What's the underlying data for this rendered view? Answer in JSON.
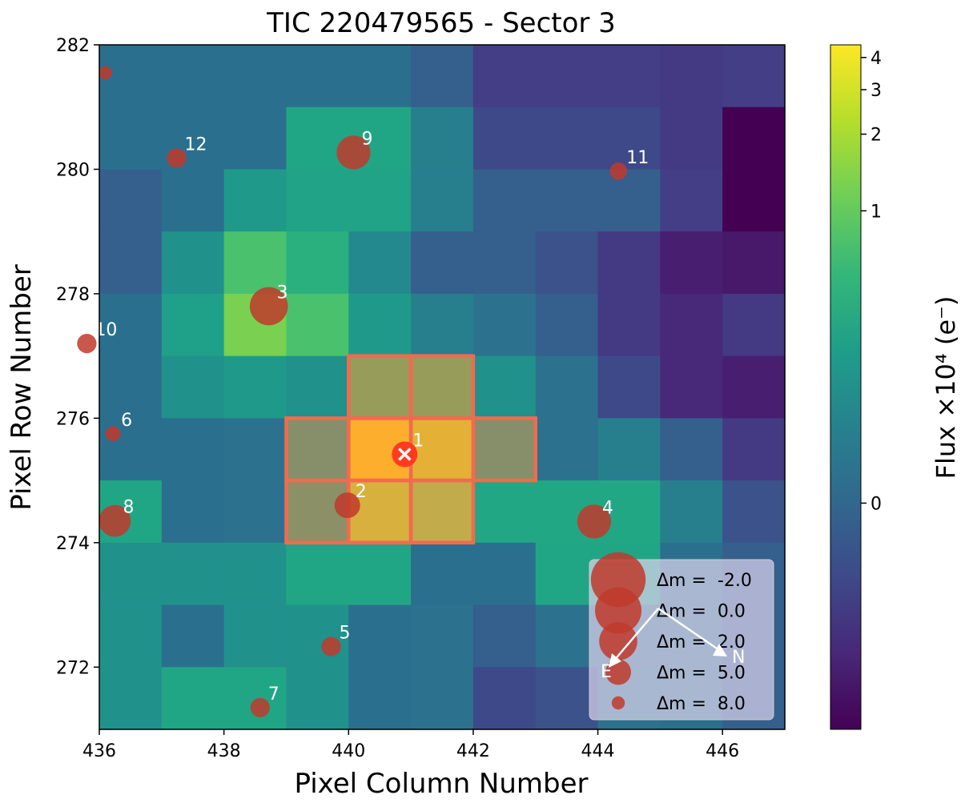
{
  "chart_data": {
    "type": "heatmap",
    "title": "TIC 220479565 - Sector 3",
    "xlabel": "Pixel Column Number",
    "ylabel": "Pixel Row Number",
    "xlim": [
      436,
      447
    ],
    "ylim": [
      271,
      282
    ],
    "xticks": [
      436,
      438,
      440,
      442,
      444,
      446
    ],
    "yticks": [
      272,
      274,
      276,
      278,
      280,
      282
    ],
    "pixel_colors": [
      [
        "#2b6f8e",
        "#2b6f8e",
        "#2b6f8e",
        "#2b6f8e",
        "#2b6f8e",
        "#355f8d",
        "#433e85",
        "#433e85",
        "#433e85",
        "#443983",
        "#433e85"
      ],
      [
        "#2b6f8e",
        "#2b6f8e",
        "#2b6f8e",
        "#21a685",
        "#21a685",
        "#277f8e",
        "#3e4989",
        "#3e4989",
        "#3e4989",
        "#443983",
        "#440154"
      ],
      [
        "#355f8d",
        "#2b6f8e",
        "#1f9a8a",
        "#20a386",
        "#20a386",
        "#277f8e",
        "#355f8d",
        "#355f8d",
        "#355f8d",
        "#433e85",
        "#440154"
      ],
      [
        "#355f8d",
        "#21918c",
        "#4ac16d",
        "#2ab07f",
        "#23898e",
        "#355f8d",
        "#355f8d",
        "#3b528b",
        "#443983",
        "#481f70",
        "#48186a"
      ],
      [
        "#2b6f8e",
        "#1fa088",
        "#7ad151",
        "#4ac16d",
        "#1f9a8a",
        "#277f8e",
        "#2c728e",
        "#355f8d",
        "#443983",
        "#482878",
        "#443983"
      ],
      [
        "#2b6f8e",
        "#21918c",
        "#1f9a8a",
        "#21918c",
        "#979c5b",
        "#979c5b",
        "#21918c",
        "#2c728e",
        "#3e4989",
        "#482878",
        "#481f70"
      ],
      [
        "#2b6f8e",
        "#2b6f8e",
        "#2c728e",
        "#878e6a",
        "#fdae2c",
        "#e4b136",
        "#878e6a",
        "#2c728e",
        "#277f8e",
        "#355f8d",
        "#443983"
      ],
      [
        "#21a685",
        "#2b6f8e",
        "#2c728e",
        "#8c9066",
        "#d8b03e",
        "#c2ab4a",
        "#22a785",
        "#22a785",
        "#22a785",
        "#277f8e",
        "#3b528b"
      ],
      [
        "#21918c",
        "#21918c",
        "#21918c",
        "#21a685",
        "#21a685",
        "#2b6f8e",
        "#2b6f8e",
        "#21a685",
        "#21a685",
        "#2b6f8e",
        "#355f8d"
      ],
      [
        "#21918c",
        "#2b6f8e",
        "#21918c",
        "#21918c",
        "#2b6f8e",
        "#2c728e",
        "#355f8d",
        "#2c728e",
        "#2b6f8e",
        "#2b6f8e",
        "#355f8d"
      ],
      [
        "#21918c",
        "#21a685",
        "#21a685",
        "#21918c",
        "#2b6f8e",
        "#2c728e",
        "#3e4989",
        "#3b528b",
        "#2c728e",
        "#2b6f8e",
        "#355f8d"
      ]
    ],
    "aperture_pixels": [
      {
        "col": 440,
        "row": 276
      },
      {
        "col": 441,
        "row": 276
      },
      {
        "col": 439,
        "row": 275
      },
      {
        "col": 440,
        "row": 275
      },
      {
        "col": 441,
        "row": 275
      },
      {
        "col": 442,
        "row": 275
      },
      {
        "col": 439,
        "row": 274
      },
      {
        "col": 440,
        "row": 274
      },
      {
        "col": 441,
        "row": 274
      }
    ],
    "target": {
      "col": 440.9,
      "row": 275.42,
      "label": "1"
    },
    "stars": [
      {
        "label": "2",
        "col": 439.98,
        "row": 274.6,
        "dm": 5.0
      },
      {
        "label": "3",
        "col": 438.72,
        "row": 277.8,
        "dm": 2.0
      },
      {
        "label": "4",
        "col": 443.94,
        "row": 274.34,
        "dm": 3.0
      },
      {
        "label": "5",
        "col": 439.72,
        "row": 272.33,
        "dm": 6.5
      },
      {
        "label": "6",
        "col": 436.22,
        "row": 275.75,
        "dm": 7.5
      },
      {
        "label": "7",
        "col": 438.58,
        "row": 271.35,
        "dm": 6.5
      },
      {
        "label": "8",
        "col": 436.25,
        "row": 274.35,
        "dm": 3.5
      },
      {
        "label": "9",
        "col": 440.08,
        "row": 280.27,
        "dm": 3.0
      },
      {
        "label": "10",
        "col": 435.8,
        "row": 277.2,
        "dm": 6.5
      },
      {
        "label": "11",
        "col": 444.33,
        "row": 279.97,
        "dm": 7.0
      },
      {
        "label": "12",
        "col": 437.24,
        "row": 280.18,
        "dm": 6.5
      },
      {
        "label": "",
        "col": 436.1,
        "row": 281.55,
        "dm": 8.0
      }
    ],
    "legend": {
      "entries": [
        {
          "text": "Δm =  -2.0",
          "dm": -2.0
        },
        {
          "text": "Δm =  0.0",
          "dm": 0.0
        },
        {
          "text": "Δm =  2.0",
          "dm": 2.0
        },
        {
          "text": "Δm =  5.0",
          "dm": 5.0
        },
        {
          "text": "Δm =  8.0",
          "dm": 8.0
        }
      ],
      "position": "lower-right"
    },
    "compass": {
      "north_label": "N",
      "east_label": "E"
    },
    "colorbar": {
      "label": "Flux ×10⁴  (e⁻)",
      "ticks": [
        {
          "label": "4",
          "frac": 0.0185
        },
        {
          "label": "3",
          "frac": 0.0655
        },
        {
          "label": "2",
          "frac": 0.1305
        },
        {
          "label": "1",
          "frac": 0.2425
        },
        {
          "label": "0",
          "frac": 0.6695
        }
      ],
      "stops": [
        "#fde725",
        "#b5de2b",
        "#6ece58",
        "#35b779",
        "#1f9e89",
        "#26828e",
        "#31688e",
        "#3e4989",
        "#482878",
        "#440154"
      ]
    },
    "colors": {
      "star_marker": "#c0392b",
      "aperture": "#f26a4f",
      "target_marker": "#ff3b1f"
    }
  }
}
